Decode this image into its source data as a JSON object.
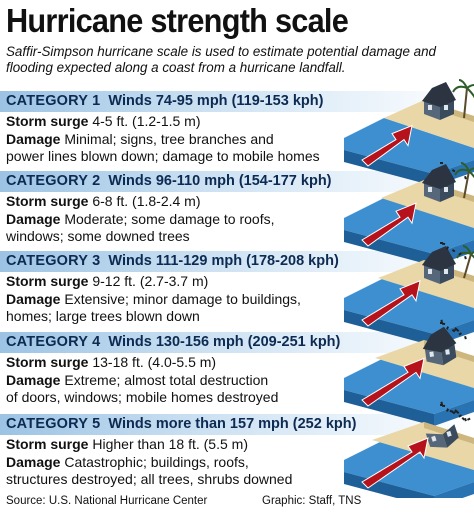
{
  "title": "Hurricane strength scale",
  "subtitle": "Saffir-Simpson hurricane scale is used to estimate potential damage and flooding expected along a coast from a hurricane landfall.",
  "labels": {
    "storm_surge": "Storm surge",
    "damage": "Damage"
  },
  "categories": [
    {
      "name": "CATEGORY 1",
      "winds": "Winds 74-95 mph (119-153 kph)",
      "surge": "4-5 ft. (1.2-1.5 m)",
      "damage_line1": "Minimal; signs, tree branches and",
      "damage_line2": "power lines blown down; damage to mobile homes"
    },
    {
      "name": "CATEGORY 2",
      "winds": "Winds 96-110 mph (154-177 kph)",
      "surge": "6-8 ft. (1.8-2.4 m)",
      "damage_line1": "Moderate; some damage to roofs,",
      "damage_line2": "windows; some downed trees"
    },
    {
      "name": "CATEGORY 3",
      "winds": "Winds 111-129 mph (178-208 kph)",
      "surge": "9-12 ft. (2.7-3.7 m)",
      "damage_line1": "Extensive; minor damage to buildings,",
      "damage_line2": "homes; large trees blown down"
    },
    {
      "name": "CATEGORY 4",
      "winds": "Winds 130-156 mph (209-251 kph)",
      "surge": "13-18 ft. (4.0-5.5 m)",
      "damage_line1": "Extreme; almost total destruction",
      "damage_line2": "of doors, windows; mobile homes destroyed"
    },
    {
      "name": "CATEGORY 5",
      "winds": "Winds more than 157 mph (252 kph)",
      "surge": "Higher than 18 ft. (5.5 m)",
      "damage_line1": "Catastrophic; buildings, roofs,",
      "damage_line2": "structures destroyed; all trees, shrubs downed"
    }
  ],
  "source": "Source: U.S. National Hurricane Center",
  "credit": "Graphic: Staff, TNS",
  "colors": {
    "header_blue": "#9cc3e4",
    "header_text": "#0d2b52",
    "water": "#3d8fd0",
    "sand": "#e9d7a8",
    "arrow": "#b5121b",
    "house": "#3a4b5e"
  },
  "icons": [
    "house-icon",
    "palm-tree-icon",
    "storm-surge-arrow-icon",
    "debris-icon"
  ]
}
